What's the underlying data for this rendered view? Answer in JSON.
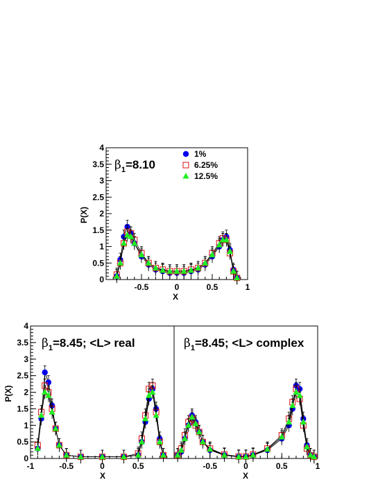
{
  "chart_data": [
    {
      "type": "scatter",
      "panel": "top",
      "annotation": {
        "beta": "β",
        "sub": "1",
        "rest": "=8.10"
      },
      "xlabel": "X",
      "ylabel": "P(X)",
      "xlim": [
        -1,
        1
      ],
      "ylim": [
        0,
        4
      ],
      "xticks": [
        "-0.5",
        "0",
        "0.5",
        "1"
      ],
      "xtick_values": [
        -0.5,
        0,
        0.5,
        1
      ],
      "yticks": [
        "0",
        "0.5",
        "1",
        "1.5",
        "2",
        "2.5",
        "3",
        "3.5",
        "4"
      ],
      "ytick_values": [
        0,
        0.5,
        1,
        1.5,
        2,
        2.5,
        3,
        3.5,
        4
      ],
      "legend": [
        {
          "label": "1%",
          "marker": "circle",
          "color": "#0000ee"
        },
        {
          "label": "6.25%",
          "marker": "open-square",
          "color": "#dd2222"
        },
        {
          "label": "12.5%",
          "marker": "triangle",
          "color": "#22ee22"
        }
      ],
      "legend_position": "top-right",
      "series": [
        {
          "name": "1%",
          "marker": "circle",
          "color": "#0000ee",
          "x": [
            -0.85,
            -0.8,
            -0.75,
            -0.7,
            -0.65,
            -0.6,
            -0.5,
            -0.4,
            -0.3,
            -0.2,
            -0.1,
            0,
            0.1,
            0.2,
            0.3,
            0.4,
            0.5,
            0.6,
            0.65,
            0.7,
            0.75,
            0.8,
            0.85
          ],
          "y": [
            0.1,
            0.6,
            1.3,
            1.6,
            1.4,
            1.1,
            0.7,
            0.45,
            0.3,
            0.25,
            0.2,
            0.2,
            0.2,
            0.25,
            0.3,
            0.45,
            0.7,
            1.0,
            1.2,
            1.3,
            0.9,
            0.3,
            0.05
          ]
        },
        {
          "name": "6.25%",
          "marker": "open-square",
          "color": "#dd2222",
          "x": [
            -0.85,
            -0.8,
            -0.75,
            -0.7,
            -0.65,
            -0.6,
            -0.5,
            -0.4,
            -0.3,
            -0.2,
            -0.1,
            0,
            0.1,
            0.2,
            0.3,
            0.4,
            0.5,
            0.6,
            0.65,
            0.7,
            0.75,
            0.8,
            0.85
          ],
          "y": [
            0.15,
            0.5,
            1.1,
            1.45,
            1.4,
            1.2,
            0.8,
            0.5,
            0.35,
            0.3,
            0.25,
            0.25,
            0.25,
            0.3,
            0.35,
            0.5,
            0.8,
            1.1,
            1.25,
            1.2,
            0.8,
            0.25,
            0.05
          ]
        },
        {
          "name": "12.5%",
          "marker": "triangle",
          "color": "#22ee22",
          "x": [
            -0.85,
            -0.8,
            -0.75,
            -0.7,
            -0.65,
            -0.6,
            -0.5,
            -0.4,
            -0.3,
            -0.2,
            -0.1,
            0,
            0.1,
            0.2,
            0.3,
            0.4,
            0.5,
            0.6,
            0.65,
            0.7,
            0.75,
            0.8,
            0.85
          ],
          "y": [
            0.1,
            0.5,
            1.1,
            1.35,
            1.3,
            1.1,
            0.75,
            0.5,
            0.35,
            0.28,
            0.25,
            0.25,
            0.25,
            0.28,
            0.35,
            0.5,
            0.75,
            1.05,
            1.2,
            1.2,
            0.85,
            0.25,
            0.05
          ]
        }
      ]
    },
    {
      "type": "scatter",
      "panel": "bottom-left",
      "annotation": {
        "beta": "β",
        "sub": "1",
        "rest": "=8.45; <L> real"
      },
      "xlabel": "X",
      "ylabel": "P(X)",
      "xlim": [
        -1,
        1
      ],
      "ylim": [
        0,
        4
      ],
      "xticks": [
        "-1",
        "-0.5",
        "0",
        "0.5"
      ],
      "xtick_values": [
        -1,
        -0.5,
        0,
        0.5
      ],
      "yticks": [
        "0",
        "0.5",
        "1",
        "1.5",
        "2",
        "2.5",
        "3",
        "3.5",
        "4"
      ],
      "ytick_values": [
        0,
        0.5,
        1,
        1.5,
        2,
        2.5,
        3,
        3.5,
        4
      ],
      "series": [
        {
          "name": "1%",
          "marker": "circle",
          "color": "#0000ee",
          "x": [
            -0.9,
            -0.85,
            -0.8,
            -0.75,
            -0.7,
            -0.65,
            -0.6,
            -0.5,
            -0.3,
            0,
            0.3,
            0.5,
            0.55,
            0.6,
            0.65,
            0.7,
            0.75,
            0.8,
            0.85
          ],
          "y": [
            0.3,
            1.2,
            2.6,
            2.3,
            1.6,
            0.9,
            0.4,
            0.1,
            0.05,
            0.05,
            0.05,
            0.1,
            0.5,
            1.1,
            1.8,
            2.1,
            1.5,
            0.6,
            0.1
          ]
        },
        {
          "name": "6.25%",
          "marker": "open-square",
          "color": "#dd2222",
          "x": [
            -0.9,
            -0.85,
            -0.8,
            -0.75,
            -0.7,
            -0.65,
            -0.6,
            -0.5,
            -0.3,
            0,
            0.3,
            0.5,
            0.55,
            0.6,
            0.65,
            0.7,
            0.75,
            0.8,
            0.85
          ],
          "y": [
            0.4,
            1.4,
            2.2,
            2.0,
            1.5,
            0.9,
            0.4,
            0.1,
            0.05,
            0.05,
            0.05,
            0.15,
            0.6,
            1.3,
            2.1,
            2.2,
            1.4,
            0.5,
            0.1
          ]
        },
        {
          "name": "12.5%",
          "marker": "triangle",
          "color": "#22ee22",
          "x": [
            -0.9,
            -0.85,
            -0.8,
            -0.75,
            -0.7,
            -0.65,
            -0.6,
            -0.5,
            -0.3,
            0,
            0.3,
            0.5,
            0.55,
            0.6,
            0.65,
            0.7,
            0.75,
            0.8,
            0.85
          ],
          "y": [
            0.3,
            1.3,
            2.0,
            1.9,
            1.4,
            0.9,
            0.4,
            0.1,
            0.05,
            0.05,
            0.05,
            0.1,
            0.5,
            1.2,
            1.9,
            2.0,
            1.3,
            0.5,
            0.1
          ]
        }
      ]
    },
    {
      "type": "scatter",
      "panel": "bottom-right",
      "annotation": {
        "beta": "β",
        "sub": "1",
        "rest": "=8.45; <L> complex"
      },
      "xlabel": "X",
      "xlim": [
        -1,
        1
      ],
      "ylim": [
        0,
        4
      ],
      "xticks": [
        "-0.5",
        "0",
        "0.5",
        "1"
      ],
      "xtick_values": [
        -0.5,
        0,
        0.5,
        1
      ],
      "series": [
        {
          "name": "1%",
          "marker": "circle",
          "color": "#0000ee",
          "x": [
            -0.95,
            -0.9,
            -0.85,
            -0.8,
            -0.75,
            -0.7,
            -0.65,
            -0.6,
            -0.5,
            -0.3,
            -0.1,
            0,
            0.1,
            0.3,
            0.5,
            0.6,
            0.65,
            0.7,
            0.75,
            0.8,
            0.85,
            0.9,
            0.95
          ],
          "y": [
            0.1,
            0.2,
            0.6,
            1.0,
            1.3,
            1.1,
            0.8,
            0.5,
            0.25,
            0.1,
            0.05,
            0.05,
            0.1,
            0.25,
            0.6,
            1.0,
            1.5,
            2.2,
            2.1,
            1.2,
            0.4,
            0.1,
            0.05
          ]
        },
        {
          "name": "6.25%",
          "marker": "open-square",
          "color": "#dd2222",
          "x": [
            -0.95,
            -0.9,
            -0.85,
            -0.8,
            -0.75,
            -0.7,
            -0.65,
            -0.6,
            -0.5,
            -0.3,
            -0.1,
            0,
            0.1,
            0.3,
            0.5,
            0.6,
            0.65,
            0.7,
            0.75,
            0.8,
            0.85,
            0.9,
            0.95
          ],
          "y": [
            0.1,
            0.3,
            0.7,
            1.1,
            1.2,
            1.0,
            0.8,
            0.5,
            0.3,
            0.12,
            0.06,
            0.06,
            0.12,
            0.3,
            0.7,
            1.2,
            1.7,
            2.1,
            1.8,
            1.0,
            0.3,
            0.1,
            0.05
          ]
        },
        {
          "name": "12.5%",
          "marker": "triangle",
          "color": "#22ee22",
          "x": [
            -0.95,
            -0.9,
            -0.85,
            -0.8,
            -0.75,
            -0.7,
            -0.65,
            -0.6,
            -0.5,
            -0.3,
            -0.1,
            0,
            0.1,
            0.3,
            0.5,
            0.6,
            0.65,
            0.7,
            0.75,
            0.8,
            0.85,
            0.9,
            0.95
          ],
          "y": [
            0.1,
            0.25,
            0.6,
            1.0,
            1.25,
            1.05,
            0.8,
            0.5,
            0.28,
            0.1,
            0.05,
            0.05,
            0.1,
            0.28,
            0.65,
            1.1,
            1.6,
            2.0,
            1.9,
            1.1,
            0.35,
            0.1,
            0.05
          ]
        }
      ]
    }
  ]
}
